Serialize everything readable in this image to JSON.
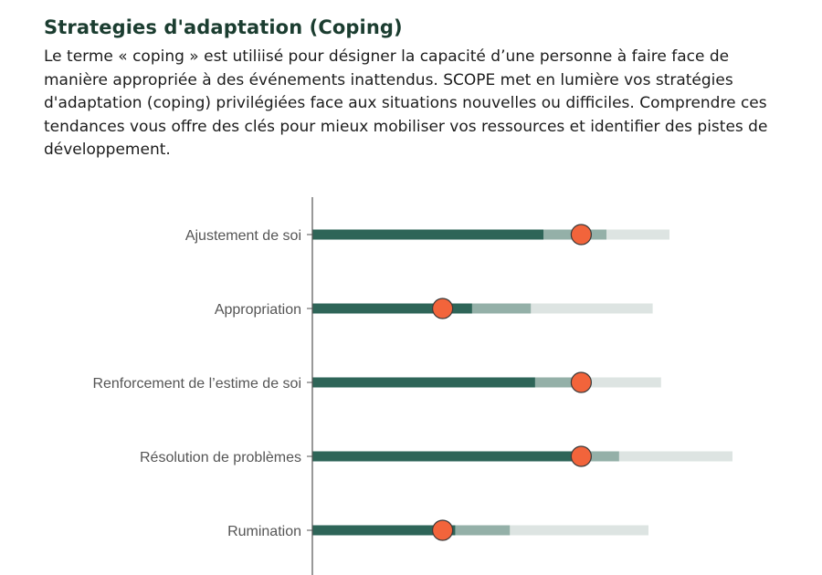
{
  "header": {
    "title": "Strategies d'adaptation (Coping)",
    "intro": "Le terme « coping » est utiliisé pour désigner la capacité d’une personne à faire face de manière appropriée à des événements inattendus. SCOPE met en lumière vos stratégies d'adaptation (coping) privilégiées face aux situations nouvelles ou difficiles. Comprendre ces tendances vous offre des clés pour mieux mobiliser vos ressources et identifier des pistes de développement."
  },
  "colors": {
    "title": "#1b3d30",
    "bar_score": "#2e6558",
    "bar_range": "#94b0a8",
    "bar_track": "#dde4e2",
    "marker": "#f2643b",
    "axis": "#555555"
  },
  "chart_data": {
    "type": "bar",
    "orientation": "horizontal",
    "title": "",
    "xlabel": "",
    "ylabel": "",
    "xlim": [
      0,
      100
    ],
    "categories": [
      "Ajustement de soi",
      "Appropriation",
      "Renforcement de l’estime de soi",
      "Résolution de problèmes",
      "Rumination"
    ],
    "series": [
      {
        "values": [
          55,
          38,
          53,
          64,
          34
        ]
      },
      {
        "values": [
          70,
          52,
          66,
          73,
          47
        ]
      },
      {
        "values": [
          85,
          81,
          83,
          100,
          80
        ]
      },
      {
        "values": [
          64,
          31,
          64,
          64,
          31
        ]
      }
    ]
  }
}
